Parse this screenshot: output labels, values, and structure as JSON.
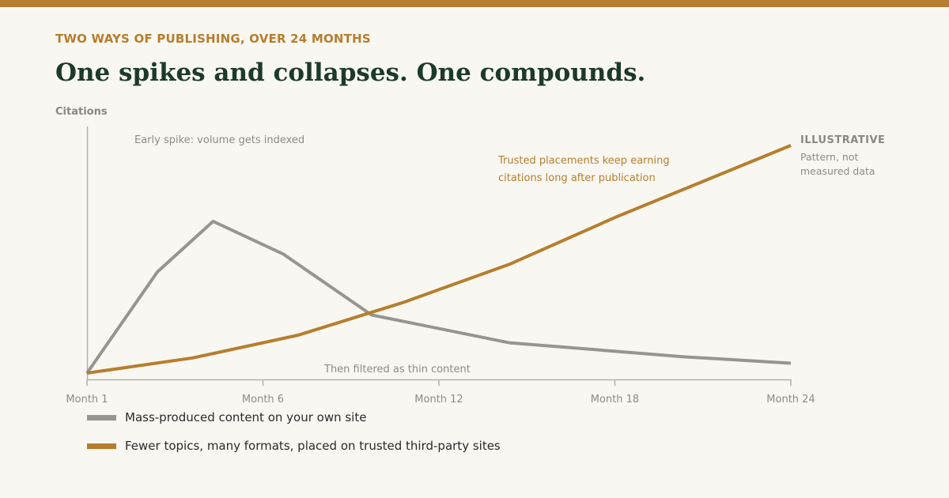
{
  "kicker": "TWO WAYS OF PUBLISHING, OVER 24 MONTHS",
  "headline": "One spikes and collapses. One compounds.",
  "colors": {
    "accent": "#b67e2d",
    "muted": "#979590",
    "ink": "#1c3a2c"
  },
  "chart_data": {
    "type": "line",
    "ylabel": "Citations",
    "xlabel": "",
    "x_range": [
      1,
      24
    ],
    "ylim": [
      0,
      100
    ],
    "ticks": [
      {
        "x": 1,
        "label": "Month 1"
      },
      {
        "x": 7,
        "label": "Month 6"
      },
      {
        "x": 13,
        "label": "Month 12"
      },
      {
        "x": 19,
        "label": "Month 18"
      },
      {
        "x": 25,
        "label": "Month 24"
      }
    ],
    "series": [
      {
        "name": "Mass-produced content on your own site",
        "color": "#979590",
        "points": [
          [
            1,
            0
          ],
          [
            3.4,
            40
          ],
          [
            5.3,
            60
          ],
          [
            7.7,
            47
          ],
          [
            10.7,
            23
          ],
          [
            15.4,
            12
          ],
          [
            21.3,
            6.5
          ],
          [
            25,
            3.9
          ]
        ]
      },
      {
        "name": "Fewer topics, many formats, placed on trusted third-party sites",
        "color": "#b67e2d",
        "points": [
          [
            1,
            0
          ],
          [
            4.6,
            6
          ],
          [
            8.2,
            15
          ],
          [
            11.8,
            28
          ],
          [
            15.4,
            43
          ],
          [
            19.1,
            62
          ],
          [
            25,
            90
          ]
        ]
      }
    ],
    "annotations": [
      {
        "text": "Early spike: volume gets indexed"
      },
      {
        "text": "Then filtered as thin content"
      },
      {
        "lines": [
          "Trusted placements keep earning",
          "citations long after publication"
        ]
      }
    ],
    "badge": {
      "title": "ILLUSTRATIVE",
      "lines": [
        "Pattern, not",
        "measured data"
      ]
    },
    "grid": false,
    "legend": "bottom-left"
  }
}
